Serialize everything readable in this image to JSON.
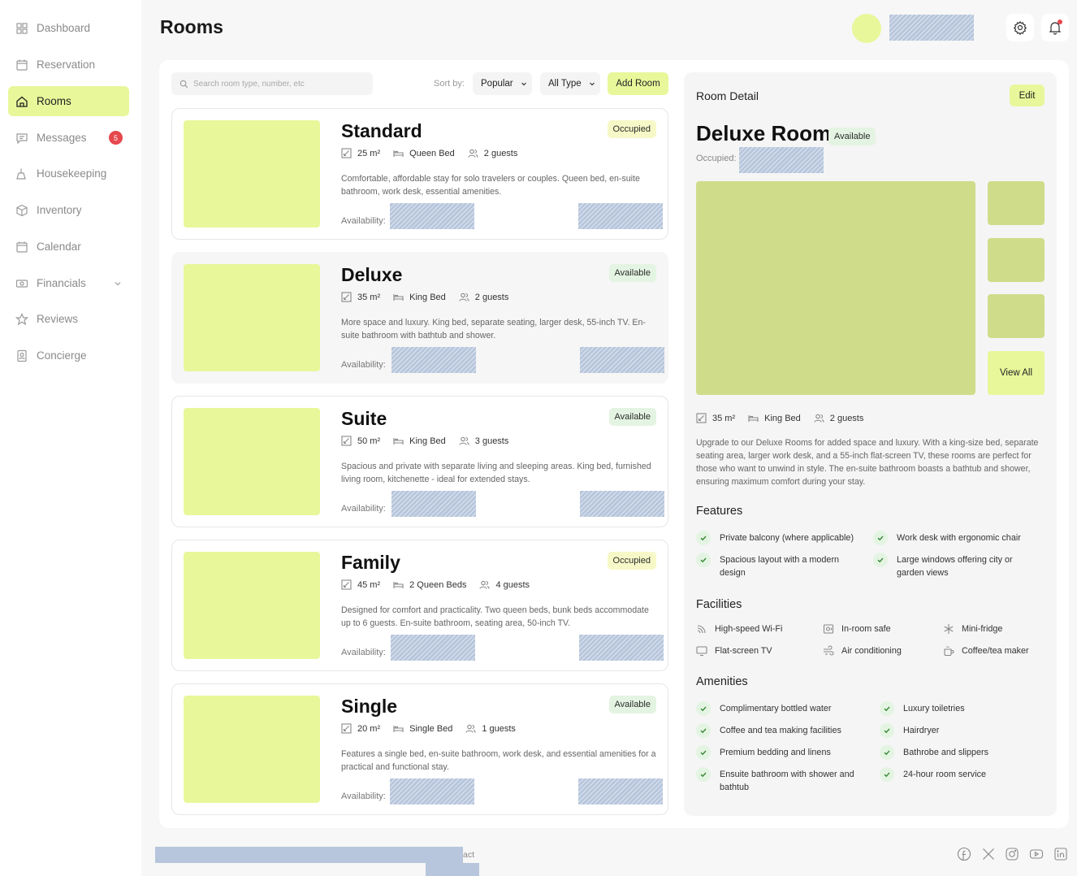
{
  "sidebar": {
    "items": [
      {
        "label": "Dashboard",
        "icon": "grid-icon"
      },
      {
        "label": "Reservation",
        "icon": "calendar-icon"
      },
      {
        "label": "Rooms",
        "icon": "home-icon",
        "active": true
      },
      {
        "label": "Messages",
        "icon": "message-icon",
        "badge": "5"
      },
      {
        "label": "Housekeeping",
        "icon": "broom-icon"
      },
      {
        "label": "Inventory",
        "icon": "box-icon"
      },
      {
        "label": "Calendar",
        "icon": "calendar-icon"
      },
      {
        "label": "Financials",
        "icon": "money-icon",
        "expandable": true
      },
      {
        "label": "Reviews",
        "icon": "star-icon"
      },
      {
        "label": "Concierge",
        "icon": "badge-icon"
      }
    ]
  },
  "header": {
    "title": "Rooms"
  },
  "toolbar": {
    "search_placeholder": "Search room type, number, etc",
    "sort_label": "Sort by:",
    "sort_value": "Popular",
    "type_value": "All Type",
    "add_room_label": "Add Room"
  },
  "rooms": [
    {
      "name": "Standard",
      "status": "Occupied",
      "size": "25 m²",
      "bed": "Queen Bed",
      "guests": "2 guests",
      "description": "Comfortable, affordable stay for solo travelers or couples. Queen bed, en-suite bathroom, work desk, essential amenities.",
      "availability_label": "Availability:"
    },
    {
      "name": "Deluxe",
      "status": "Available",
      "size": "35 m²",
      "bed": "King Bed",
      "guests": "2 guests",
      "description": "More space and luxury. King bed, separate seating, larger desk, 55-inch TV. En-suite bathroom with bathtub and shower.",
      "availability_label": "Availability:"
    },
    {
      "name": "Suite",
      "status": "Available",
      "size": "50 m²",
      "bed": "King Bed",
      "guests": "3 guests",
      "description": "Spacious and private with separate living and sleeping areas. King bed, furnished living room, kitchenette - ideal for extended stays.",
      "availability_label": "Availability:"
    },
    {
      "name": "Family",
      "status": "Occupied",
      "size": "45 m²",
      "bed": "2 Queen Beds",
      "guests": "4 guests",
      "description": "Designed for comfort and practicality. Two queen beds, bunk beds accommodate up to 6 guests. En-suite bathroom, seating area, 50-inch TV.",
      "availability_label": "Availability:"
    },
    {
      "name": "Single",
      "status": "Available",
      "size": "20 m²",
      "bed": "Single Bed",
      "guests": "1 guests",
      "description": "Features a single bed, en-suite bathroom, work desk, and essential amenities for a practical and functional stay.",
      "availability_label": "Availability:"
    }
  ],
  "detail": {
    "header": "Room Detail",
    "edit_label": "Edit",
    "title": "Deluxe Room",
    "status": "Available",
    "occupied_label": "Occupied:",
    "view_all_label": "View All",
    "size": "35 m²",
    "bed": "King Bed",
    "guests": "2 guests",
    "description": "Upgrade to our Deluxe Rooms for added space and luxury. With a king-size bed, separate seating area, larger work desk, and a 55-inch flat-screen TV, these rooms are perfect for those who want to unwind in style. The en-suite bathroom boasts a bathtub and shower, ensuring maximum comfort during your stay.",
    "features_title": "Features",
    "features": [
      "Private balcony (where applicable)",
      "Work desk with ergonomic chair",
      "Spacious layout with a modern design",
      "Large windows offering city or garden views"
    ],
    "facilities_title": "Facilities",
    "facilities": [
      {
        "label": "High-speed Wi-Fi",
        "icon": "wifi-icon"
      },
      {
        "label": "In-room safe",
        "icon": "safe-icon"
      },
      {
        "label": "Mini-fridge",
        "icon": "snowflake-icon"
      },
      {
        "label": "Flat-screen TV",
        "icon": "tv-icon"
      },
      {
        "label": "Air conditioning",
        "icon": "wind-icon"
      },
      {
        "label": "Coffee/tea maker",
        "icon": "cup-icon"
      }
    ],
    "amenities_title": "Amenities",
    "amenities": [
      "Complimentary bottled water",
      "Luxury toiletries",
      "Coffee and tea making facilities",
      "Hairdryer",
      "Premium bedding and linens",
      "Bathrobe and slippers",
      "Ensuite bathroom with shower and bathtub",
      "24-hour room service"
    ]
  },
  "footer": {
    "text_fragment": "act",
    "social": [
      "facebook-icon",
      "x-icon",
      "instagram-icon",
      "youtube-icon",
      "linkedin-icon"
    ]
  },
  "colors": {
    "accent": "#e8f79a",
    "photo": "#cfdc8a",
    "available_bg": "#e4f4e2",
    "occupied_bg": "#f6f9c7",
    "badge_red": "#e5484d"
  }
}
